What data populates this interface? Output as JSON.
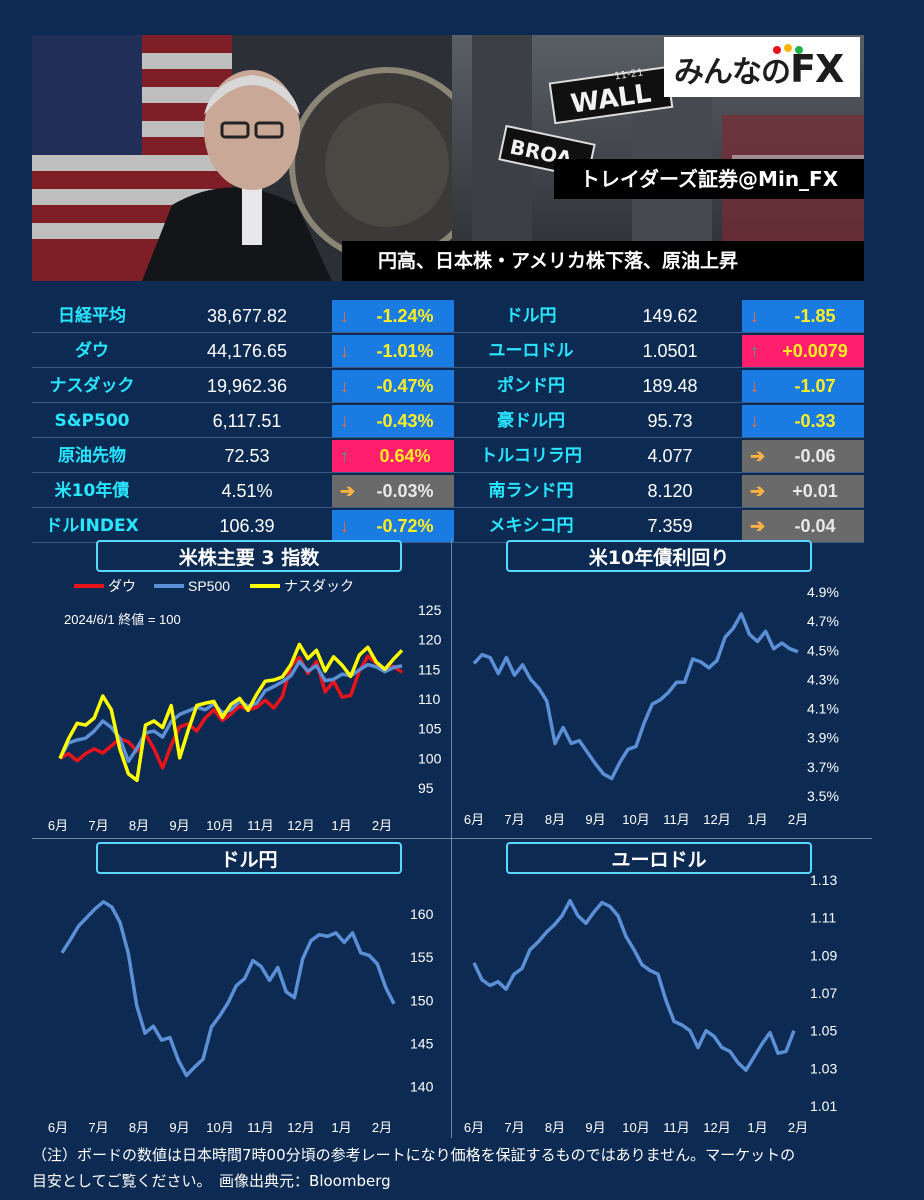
{
  "header": {
    "logo_text": "みんなの",
    "logo_fx": "FX",
    "broker": "トレイダーズ証券@Min_FX",
    "headline": "円高、日本株・アメリカ株下落、原油上昇",
    "sign_wall": "WALL",
    "sign_broad": "BROA",
    "sign_street_no": "11-21"
  },
  "table": {
    "rows": [
      {
        "l_name": "日経平均",
        "l_value": "38,677.82",
        "l_change": "-1.24%",
        "l_dir": "down",
        "r_name": "ドル円",
        "r_value": "149.62",
        "r_change": "-1.85",
        "r_dir": "down"
      },
      {
        "l_name": "ダウ",
        "l_value": "44,176.65",
        "l_change": "-1.01%",
        "l_dir": "down",
        "r_name": "ユーロドル",
        "r_value": "1.0501",
        "r_change": "+0.0079",
        "r_dir": "up"
      },
      {
        "l_name": "ナスダック",
        "l_value": "19,962.36",
        "l_change": "-0.47%",
        "l_dir": "down",
        "r_name": "ポンド円",
        "r_value": "189.48",
        "r_change": "-1.07",
        "r_dir": "down"
      },
      {
        "l_name": "S&P500",
        "l_value": "6,117.51",
        "l_change": "-0.43%",
        "l_dir": "down",
        "r_name": "豪ドル円",
        "r_value": "95.73",
        "r_change": "-0.33",
        "r_dir": "down"
      },
      {
        "l_name": "原油先物",
        "l_value": "72.53",
        "l_change": "0.64%",
        "l_dir": "up",
        "r_name": "トルコリラ円",
        "r_value": "4.077",
        "r_change": "-0.06",
        "r_dir": "flat"
      },
      {
        "l_name": "米10年債",
        "l_value": "4.51%",
        "l_change": "-0.03%",
        "l_dir": "flat",
        "r_name": "南ランド円",
        "r_value": "8.120",
        "r_change": "+0.01",
        "r_dir": "flat"
      },
      {
        "l_name": "ドルINDEX",
        "l_value": "106.39",
        "l_change": "-0.72%",
        "l_dir": "down",
        "r_name": "メキシコ円",
        "r_value": "7.359",
        "r_change": "-0.04",
        "r_dir": "flat"
      }
    ]
  },
  "colors": {
    "background": "#0d2a52",
    "label_cyan": "#29e6ff",
    "down_bg": "#1a7be3",
    "up_bg": "#ff1f6d",
    "flat_bg": "#6a6a6a",
    "line_blue": "#5b8fd6",
    "dow_red": "#e8141c",
    "nasdaq_yellow": "#ffff00"
  },
  "chart_data": [
    {
      "id": "us-indices",
      "type": "line",
      "title": "米株主要 3 指数",
      "note": "2024/6/1 終値 = 100",
      "x_labels": [
        "6月",
        "7月",
        "8月",
        "9月",
        "10月",
        "11月",
        "12月",
        "1月",
        "2月"
      ],
      "yticks": [
        95,
        100,
        105,
        110,
        115,
        120,
        125
      ],
      "ylim": [
        94,
        126
      ],
      "legend_position": "top",
      "series": [
        {
          "name": "ダウ",
          "color": "#e8141c",
          "values": [
            100,
            100.8,
            99.6,
            100.8,
            101.6,
            100.9,
            102.1,
            103.3,
            102.8,
            101.2,
            104.1,
            101.6,
            98.4,
            102.2,
            105.3,
            105.8,
            104.6,
            106.8,
            108.2,
            106.4,
            107.5,
            108.8,
            108.2,
            108.6,
            109.8,
            108.5,
            110.4,
            115.6,
            117.0,
            114.3,
            116.3,
            111.2,
            113.0,
            110.3,
            110.6,
            114.7,
            117.2,
            116.0,
            114.9,
            115.5,
            114.5
          ]
        },
        {
          "name": "SP500",
          "color": "#5b8fd6",
          "values": [
            100,
            102.6,
            103.1,
            103.4,
            104.6,
            106.3,
            105.2,
            103.4,
            99.5,
            101.7,
            104.3,
            104.6,
            103.6,
            106.2,
            107.4,
            108.0,
            108.6,
            108.2,
            109.2,
            107.7,
            108.2,
            109.6,
            108.8,
            109.3,
            111.4,
            112.1,
            112.9,
            113.9,
            116.3,
            114.7,
            115.6,
            113.1,
            113.3,
            114.2,
            113.9,
            114.9,
            115.8,
            115.4,
            114.6,
            115.3,
            115.6
          ]
        },
        {
          "name": "ナスダック",
          "color": "#ffff00",
          "values": [
            100,
            103.3,
            105.9,
            105.6,
            106.8,
            110.5,
            108.2,
            101.6,
            97.4,
            96.3,
            105.6,
            106.3,
            105.2,
            108.9,
            100.1,
            104.8,
            108.9,
            109.3,
            109.6,
            106.9,
            109.1,
            110.1,
            108.1,
            110.8,
            113.0,
            113.2,
            113.7,
            115.8,
            119.2,
            116.8,
            118.2,
            114.7,
            117.1,
            115.7,
            113.8,
            117.4,
            118.7,
            116.2,
            115.0,
            116.7,
            118.2
          ]
        }
      ]
    },
    {
      "id": "us10y",
      "type": "line",
      "title": "米10年債利回り",
      "x_labels": [
        "6月",
        "7月",
        "8月",
        "9月",
        "10月",
        "11月",
        "12月",
        "1月",
        "2月"
      ],
      "yticks": [
        "4.9%",
        "4.7%",
        "4.5%",
        "4.3%",
        "4.1%",
        "3.9%",
        "3.7%",
        "3.5%"
      ],
      "ylim": [
        3.5,
        4.9
      ],
      "unit": "%",
      "values": [
        4.41,
        4.47,
        4.45,
        4.34,
        4.45,
        4.33,
        4.4,
        4.3,
        4.24,
        4.15,
        3.86,
        3.97,
        3.86,
        3.88,
        3.8,
        3.72,
        3.65,
        3.62,
        3.73,
        3.82,
        3.84,
        4.0,
        4.13,
        4.16,
        4.21,
        4.28,
        4.28,
        4.44,
        4.42,
        4.38,
        4.43,
        4.59,
        4.65,
        4.75,
        4.61,
        4.56,
        4.63,
        4.51,
        4.55,
        4.51,
        4.49
      ]
    },
    {
      "id": "usdjpy",
      "type": "line",
      "title": "ドル円",
      "x_labels": [
        "6月",
        "7月",
        "8月",
        "9月",
        "10月",
        "11月",
        "12月",
        "1月",
        "2月"
      ],
      "yticks": [
        160,
        155,
        150,
        145,
        140
      ],
      "ylim": [
        138,
        163
      ],
      "values": [
        155.5,
        157.0,
        158.6,
        159.6,
        160.6,
        161.4,
        160.8,
        159.0,
        155.4,
        149.4,
        146.2,
        147.0,
        145.4,
        145.7,
        143.1,
        141.3,
        142.3,
        143.2,
        146.9,
        148.2,
        149.7,
        151.7,
        152.5,
        154.6,
        153.9,
        152.3,
        153.8,
        151.0,
        150.3,
        154.8,
        156.9,
        157.6,
        157.4,
        157.8,
        156.7,
        157.8,
        155.5,
        155.2,
        154.2,
        151.5,
        149.6
      ]
    },
    {
      "id": "eurusd",
      "type": "line",
      "title": "ユーロドル",
      "x_labels": [
        "6月",
        "7月",
        "8月",
        "9月",
        "10月",
        "11月",
        "12月",
        "1月",
        "2月"
      ],
      "yticks": [
        "1.13",
        "1.11",
        "1.09",
        "1.07",
        "1.05",
        "1.03",
        "1.01"
      ],
      "ylim": [
        1.01,
        1.13
      ],
      "values": [
        1.086,
        1.077,
        1.074,
        1.076,
        1.072,
        1.08,
        1.083,
        1.093,
        1.097,
        1.102,
        1.106,
        1.111,
        1.119,
        1.111,
        1.107,
        1.113,
        1.118,
        1.116,
        1.111,
        1.1,
        1.093,
        1.085,
        1.082,
        1.08,
        1.066,
        1.055,
        1.053,
        1.05,
        1.041,
        1.05,
        1.047,
        1.041,
        1.039,
        1.033,
        1.029,
        1.036,
        1.043,
        1.049,
        1.038,
        1.039,
        1.05
      ]
    }
  ],
  "note": {
    "line1": "（注）ボードの数値は日本時間7時00分頃の参考レートになり価格を保証するものではありません。マーケットの",
    "line2": "目安としてご覧ください。　画像出典元：Bloomberg"
  }
}
